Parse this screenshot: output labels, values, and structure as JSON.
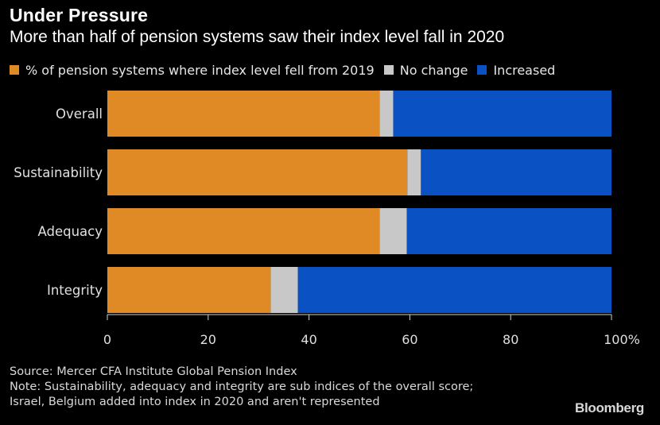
{
  "header": {
    "title": "Under Pressure",
    "subtitle": "More than half of pension systems saw their index level fall in 2020"
  },
  "legend": [
    {
      "label": "% of pension systems where index level fell from 2019",
      "color": "#E08A26"
    },
    {
      "label": "No change",
      "color": "#C8C8C8"
    },
    {
      "label": "Increased",
      "color": "#0A52C4"
    }
  ],
  "chart_data": {
    "type": "bar",
    "orientation": "horizontal",
    "stacked": true,
    "categories": [
      "Overall",
      "Sustainability",
      "Adequacy",
      "Integrity"
    ],
    "series": [
      {
        "name": "% of pension systems where index level fell from 2019",
        "color": "#E08A26",
        "values": [
          54,
          59.5,
          54,
          32.4
        ]
      },
      {
        "name": "No change",
        "color": "#C8C8C8",
        "values": [
          2.7,
          2.7,
          5.4,
          5.4
        ]
      },
      {
        "name": "Increased",
        "color": "#0A52C4",
        "values": [
          43.3,
          37.8,
          40.6,
          62.2
        ]
      }
    ],
    "xlim": [
      0,
      100
    ],
    "x_ticks": [
      "0",
      "20",
      "40",
      "60",
      "80",
      "100%"
    ],
    "grid": false,
    "legend_position": "top"
  },
  "footer": {
    "source": "Source: Mercer CFA Institute Global Pension Index",
    "note_line1": "Note: Sustainability, adequacy and integrity are sub indices of the overall score;",
    "note_line2": "Israel, Belgium added into index in 2020 and aren't represented",
    "brand": "Bloomberg"
  }
}
